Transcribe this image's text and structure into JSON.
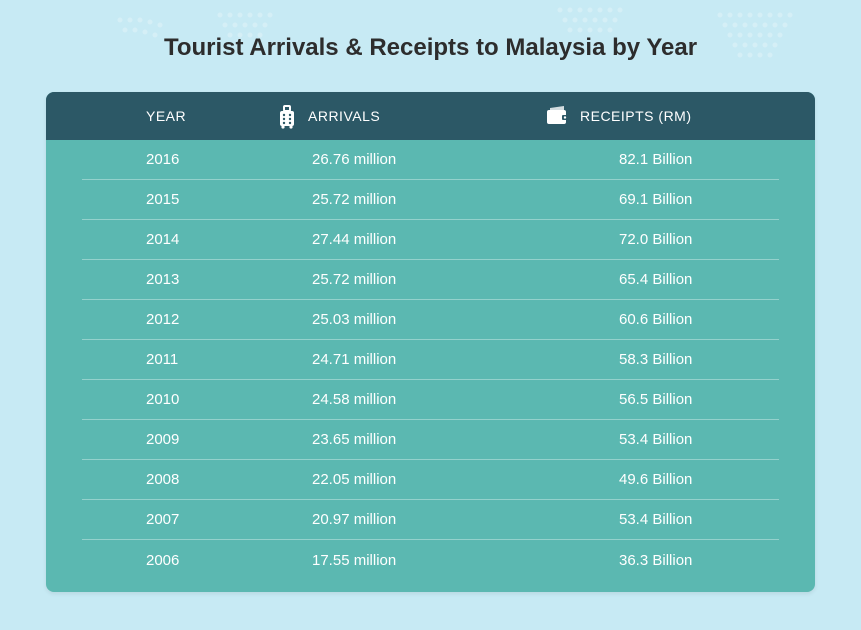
{
  "title": "Tourist Arrivals & Receipts to Malaysia by Year",
  "type": "table",
  "colors": {
    "page_background": "#c7eaf4",
    "header_bg": "#2c5866",
    "body_bg": "#5bb8b1",
    "text": "#ffffff",
    "title_text": "#2d2d2d",
    "row_divider": "rgba(255,255,255,0.35)"
  },
  "typography": {
    "title_fontsize": 24,
    "header_fontsize": 14,
    "cell_fontsize": 15
  },
  "columns": {
    "year": "YEAR",
    "arrivals": "ARRIVALS",
    "receipts": "RECEIPTS (RM)"
  },
  "rows": [
    {
      "year": "2016",
      "arrivals": "26.76 million",
      "receipts": "82.1 Billion"
    },
    {
      "year": "2015",
      "arrivals": "25.72 million",
      "receipts": "69.1 Billion"
    },
    {
      "year": "2014",
      "arrivals": "27.44 million",
      "receipts": "72.0 Billion"
    },
    {
      "year": "2013",
      "arrivals": "25.72 million",
      "receipts": "65.4 Billion"
    },
    {
      "year": "2012",
      "arrivals": "25.03 million",
      "receipts": "60.6 Billion"
    },
    {
      "year": "2011",
      "arrivals": "24.71 million",
      "receipts": "58.3 Billion"
    },
    {
      "year": "2010",
      "arrivals": "24.58 million",
      "receipts": "56.5 Billion"
    },
    {
      "year": "2009",
      "arrivals": "23.65 million",
      "receipts": "53.4 Billion"
    },
    {
      "year": "2008",
      "arrivals": "22.05 million",
      "receipts": "49.6 Billion"
    },
    {
      "year": "2007",
      "arrivals": "20.97 million",
      "receipts": "53.4 Billion"
    },
    {
      "year": "2006",
      "arrivals": "17.55 million",
      "receipts": "36.3 Billion"
    }
  ]
}
